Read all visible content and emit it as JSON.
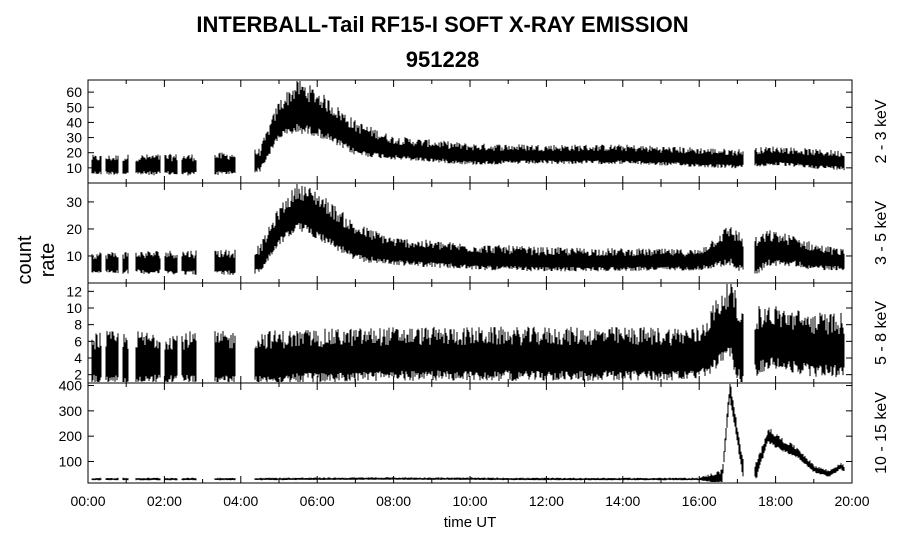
{
  "chart_data": {
    "type": "line",
    "title": "INTERBALL-Tail RF15-I SOFT X-RAY EMISSION",
    "subtitle": "951228",
    "xlabel": "time UT",
    "ylabel": "count rate",
    "x_ticks": [
      "00:00",
      "02:00",
      "04:00",
      "06:00",
      "08:00",
      "10:00",
      "12:00",
      "14:00",
      "16:00",
      "18:00",
      "20:00"
    ],
    "xlim_hours": [
      0,
      20
    ],
    "panels": [
      {
        "band": "2 - 3 keV",
        "ylim": [
          0,
          68
        ],
        "y_ticks": [
          10,
          20,
          30,
          40,
          50,
          60
        ],
        "profile": [
          [
            0,
            11
          ],
          [
            1,
            11
          ],
          [
            2,
            11
          ],
          [
            3,
            11
          ],
          [
            4,
            12
          ],
          [
            4.5,
            14
          ],
          [
            5,
            40
          ],
          [
            5.5,
            48
          ],
          [
            6,
            44
          ],
          [
            7,
            28
          ],
          [
            8,
            22
          ],
          [
            10,
            18
          ],
          [
            12,
            18
          ],
          [
            14,
            18
          ],
          [
            16,
            16
          ],
          [
            17,
            15
          ],
          [
            18,
            17
          ],
          [
            19,
            15
          ],
          [
            19.8,
            14
          ]
        ],
        "spread": [
          [
            0,
            5
          ],
          [
            4.5,
            6
          ],
          [
            5.5,
            14
          ],
          [
            6,
            12
          ],
          [
            8,
            6
          ],
          [
            12,
            5
          ],
          [
            19.8,
            5
          ]
        ]
      },
      {
        "band": "3 - 5 keV",
        "ylim": [
          0,
          37
        ],
        "y_ticks": [
          10,
          20,
          30
        ],
        "profile": [
          [
            0,
            7
          ],
          [
            2,
            7
          ],
          [
            4,
            7
          ],
          [
            4.5,
            8
          ],
          [
            5,
            20
          ],
          [
            5.5,
            27
          ],
          [
            6,
            24
          ],
          [
            7,
            14
          ],
          [
            8,
            11
          ],
          [
            10,
            9
          ],
          [
            12,
            8
          ],
          [
            14,
            8
          ],
          [
            16,
            8
          ],
          [
            16.8,
            13
          ],
          [
            17.2,
            9
          ],
          [
            17.5,
            9
          ],
          [
            17.8,
            12
          ],
          [
            18.5,
            11
          ],
          [
            19,
            9
          ],
          [
            19.8,
            8
          ]
        ],
        "spread": [
          [
            0,
            3
          ],
          [
            4.5,
            4
          ],
          [
            5.5,
            7
          ],
          [
            6,
            7
          ],
          [
            8,
            4
          ],
          [
            16,
            3
          ],
          [
            16.8,
            6
          ],
          [
            18,
            5
          ],
          [
            19.8,
            3
          ]
        ]
      },
      {
        "band": "5 - 8 keV",
        "ylim": [
          1,
          13
        ],
        "y_ticks": [
          2,
          4,
          6,
          8,
          10,
          12
        ],
        "profile": [
          [
            0,
            3.5
          ],
          [
            4,
            3.5
          ],
          [
            8,
            4
          ],
          [
            12,
            4
          ],
          [
            16,
            4
          ],
          [
            16.8,
            8
          ],
          [
            17.1,
            4.5
          ],
          [
            17.8,
            6
          ],
          [
            19,
            5
          ],
          [
            19.8,
            5
          ]
        ],
        "spread": [
          [
            0,
            2.5
          ],
          [
            16,
            2.5
          ],
          [
            16.8,
            4
          ],
          [
            17.8,
            3
          ],
          [
            19.8,
            3
          ]
        ]
      },
      {
        "band": "10 - 15 keV",
        "ylim": [
          15,
          410
        ],
        "y_ticks": [
          100,
          200,
          300,
          400
        ],
        "profile": [
          [
            0,
            30
          ],
          [
            4,
            30
          ],
          [
            8,
            32
          ],
          [
            12,
            30
          ],
          [
            16,
            30
          ],
          [
            16.6,
            35
          ],
          [
            16.8,
            380
          ],
          [
            16.95,
            250
          ],
          [
            17.1,
            100
          ],
          [
            17.2,
            40
          ],
          [
            17.5,
            60
          ],
          [
            17.8,
            200
          ],
          [
            18.2,
            160
          ],
          [
            18.6,
            130
          ],
          [
            19,
            70
          ],
          [
            19.4,
            50
          ],
          [
            19.7,
            80
          ],
          [
            19.8,
            70
          ]
        ],
        "spread": [
          [
            0,
            4
          ],
          [
            16,
            4
          ],
          [
            16.8,
            30
          ],
          [
            17.8,
            25
          ],
          [
            19,
            12
          ],
          [
            19.8,
            10
          ]
        ]
      }
    ],
    "gaps_hours": [
      [
        0.35,
        0.45
      ],
      [
        0.8,
        0.9
      ],
      [
        1.05,
        1.25
      ],
      [
        1.9,
        2.0
      ],
      [
        2.35,
        2.45
      ],
      [
        2.85,
        3.3
      ],
      [
        3.85,
        4.35
      ],
      [
        17.15,
        17.45
      ]
    ]
  }
}
